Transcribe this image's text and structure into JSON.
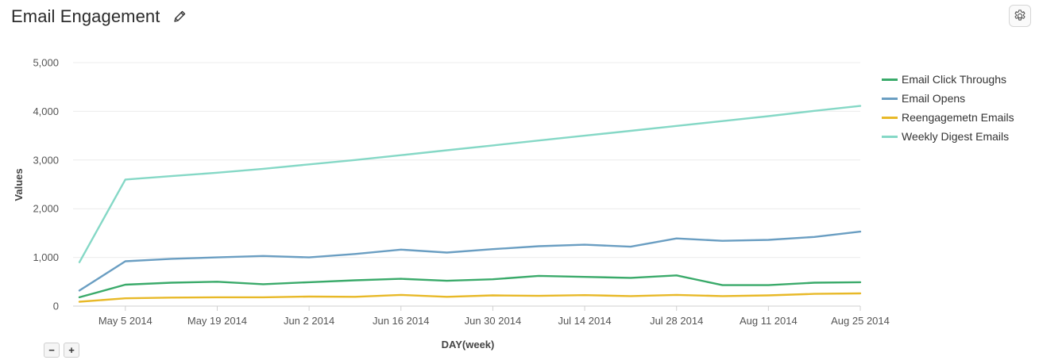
{
  "header": {
    "title": "Email Engagement",
    "edit_icon": "pencil-icon",
    "settings_icon": "gear-icon"
  },
  "controls": {
    "zoom_out_label": "−",
    "zoom_in_label": "+"
  },
  "chart_data": {
    "type": "line",
    "title": "Email Engagement",
    "xlabel": "DAY(week)",
    "ylabel": "Values",
    "ylim": [
      0,
      5000
    ],
    "yticks": [
      0,
      1000,
      2000,
      3000,
      4000,
      5000
    ],
    "ytick_labels": [
      "0",
      "1,000",
      "2,000",
      "3,000",
      "4,000",
      "5,000"
    ],
    "xtick_labels": [
      "May 5 2014",
      "May 19 2014",
      "Jun 2 2014",
      "Jun 16 2014",
      "Jun 30 2014",
      "Jul 14 2014",
      "Jul 28 2014",
      "Aug 11 2014",
      "Aug 25 2014"
    ],
    "xtick_index": [
      1,
      3,
      5,
      7,
      9,
      11,
      13,
      15,
      17
    ],
    "x": [
      "Apr 28 2014",
      "May 5 2014",
      "May 12 2014",
      "May 19 2014",
      "May 26 2014",
      "Jun 2 2014",
      "Jun 9 2014",
      "Jun 16 2014",
      "Jun 23 2014",
      "Jun 30 2014",
      "Jul 7 2014",
      "Jul 14 2014",
      "Jul 21 2014",
      "Jul 28 2014",
      "Aug 4 2014",
      "Aug 11 2014",
      "Aug 18 2014",
      "Aug 25 2014"
    ],
    "grid": true,
    "legend_position": "right",
    "series": [
      {
        "name": "Email Click Throughs",
        "color": "#3aaa6a",
        "values": [
          180,
          440,
          480,
          500,
          450,
          490,
          530,
          560,
          520,
          550,
          620,
          600,
          580,
          630,
          430,
          430,
          480,
          490
        ]
      },
      {
        "name": "Email Opens",
        "color": "#6a9ec2",
        "values": [
          320,
          920,
          970,
          1000,
          1030,
          1000,
          1070,
          1160,
          1100,
          1170,
          1230,
          1260,
          1220,
          1390,
          1340,
          1360,
          1420,
          1530
        ]
      },
      {
        "name": "Reengagemetn Emails",
        "color": "#e8b928",
        "values": [
          90,
          160,
          175,
          180,
          180,
          195,
          190,
          230,
          190,
          220,
          210,
          225,
          205,
          230,
          205,
          220,
          250,
          260
        ]
      },
      {
        "name": "Weekly Digest Emails",
        "color": "#85d8c6",
        "values": [
          900,
          2600,
          2670,
          2740,
          2820,
          2910,
          3000,
          3100,
          3200,
          3300,
          3400,
          3500,
          3600,
          3700,
          3800,
          3900,
          4010,
          4110
        ]
      }
    ]
  }
}
